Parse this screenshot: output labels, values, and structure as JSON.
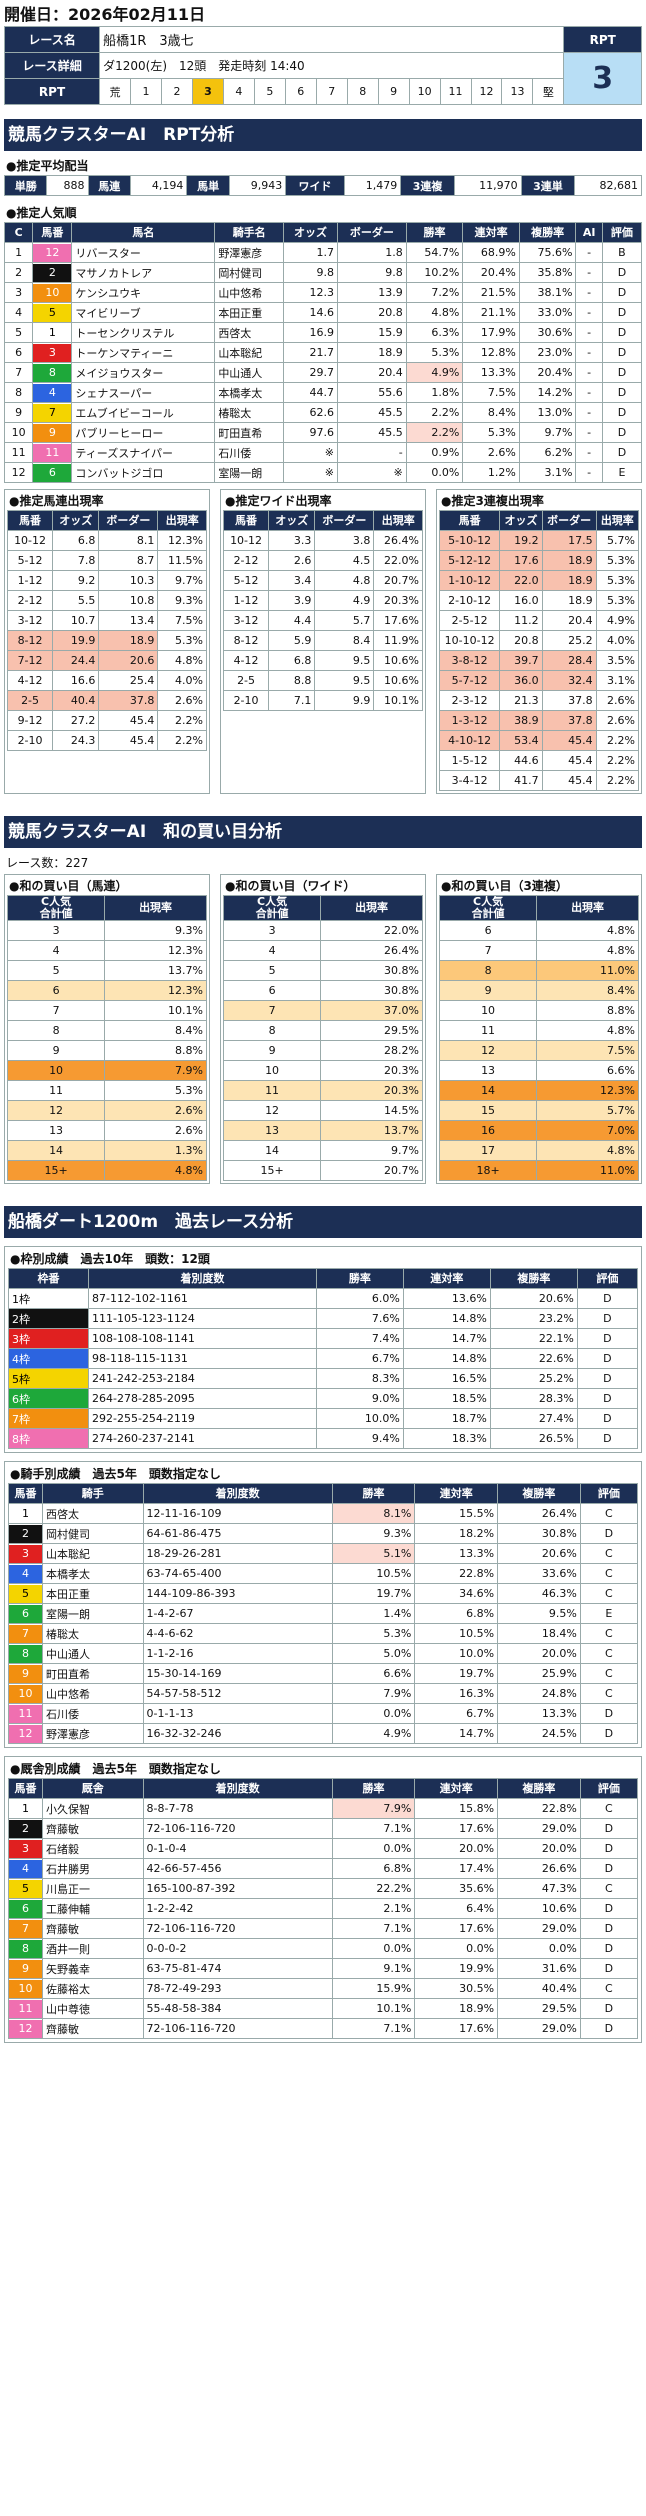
{
  "header": {
    "date_label": "開催日：2026年02月11日"
  },
  "race": {
    "name_label": "レース名",
    "name": "船橋1R　3歳七",
    "detail_label": "レース詳細",
    "detail": "ダ1200(左)　12頭　発走時刻 14:40",
    "rpt_row_label": "RPT",
    "rpt_title": "RPT",
    "rpt_value": "3",
    "rpt_scale": [
      "荒",
      "1",
      "2",
      "3",
      "4",
      "5",
      "6",
      "7",
      "8",
      "9",
      "10",
      "11",
      "12",
      "13",
      "堅"
    ],
    "rpt_selected_index": 3
  },
  "rpt_section": {
    "title": "競馬クラスターAI　RPT分析"
  },
  "avg_payout": {
    "title": "●推定平均配当",
    "items": [
      [
        "単勝",
        "888"
      ],
      [
        "馬連",
        "4,194"
      ],
      [
        "馬単",
        "9,943"
      ],
      [
        "ワイド",
        "1,479"
      ],
      [
        "3連複",
        "11,970"
      ],
      [
        "3連単",
        "82,681"
      ]
    ]
  },
  "popularity": {
    "title": "●推定人気順",
    "headers": [
      "C",
      "馬番",
      "馬名",
      "騎手名",
      "オッズ",
      "ボーダー",
      "勝率",
      "連対率",
      "複勝率",
      "AI",
      "評価"
    ],
    "rows": [
      [
        "1",
        "12",
        "リバースター",
        "野澤憲彦",
        "1.7",
        "1.8",
        "54.7%",
        "68.9%",
        "75.6%",
        "-",
        "B",
        8,
        false
      ],
      [
        "2",
        "2",
        "マサノカトレア",
        "岡村健司",
        "9.8",
        "9.8",
        "10.2%",
        "20.4%",
        "35.8%",
        "-",
        "D",
        2,
        false
      ],
      [
        "3",
        "10",
        "ケンシユウキ",
        "山中悠希",
        "12.3",
        "13.9",
        "7.2%",
        "21.5%",
        "38.1%",
        "-",
        "D",
        7,
        false
      ],
      [
        "4",
        "5",
        "マイビリーブ",
        "本田正重",
        "14.6",
        "20.8",
        "4.8%",
        "21.1%",
        "33.0%",
        "-",
        "D",
        5,
        false
      ],
      [
        "5",
        "1",
        "トーセンクリステル",
        "西啓太",
        "16.9",
        "15.9",
        "6.3%",
        "17.9%",
        "30.6%",
        "-",
        "D",
        1,
        false
      ],
      [
        "6",
        "3",
        "トーケンマティーニ",
        "山本聡紀",
        "21.7",
        "18.9",
        "5.3%",
        "12.8%",
        "23.0%",
        "-",
        "D",
        3,
        false
      ],
      [
        "7",
        "8",
        "メイジョウスター",
        "中山通人",
        "29.7",
        "20.4",
        "4.9%",
        "13.3%",
        "20.4%",
        "-",
        "D",
        6,
        true
      ],
      [
        "8",
        "4",
        "シェナスーパー",
        "本橋孝太",
        "44.7",
        "55.6",
        "1.8%",
        "7.5%",
        "14.2%",
        "-",
        "D",
        4,
        false
      ],
      [
        "9",
        "7",
        "エムブイビーコール",
        "椿聡太",
        "62.6",
        "45.5",
        "2.2%",
        "8.4%",
        "13.0%",
        "-",
        "D",
        5,
        false
      ],
      [
        "10",
        "9",
        "パブリーヒーロー",
        "町田直希",
        "97.6",
        "45.5",
        "2.2%",
        "5.3%",
        "9.7%",
        "-",
        "D",
        7,
        true
      ],
      [
        "11",
        "11",
        "ティーズスナイパー",
        "石川倭",
        "※",
        "-",
        "0.9%",
        "2.6%",
        "6.2%",
        "-",
        "D",
        8,
        false
      ],
      [
        "12",
        "6",
        "コンバットジゴロ",
        "室陽一朗",
        "※",
        "※",
        "0.0%",
        "1.2%",
        "3.1%",
        "-",
        "E",
        6,
        false
      ]
    ]
  },
  "umaren_est": {
    "title": "●推定馬連出現率",
    "headers": [
      "馬番",
      "オッズ",
      "ボーダー",
      "出現率"
    ],
    "rows": [
      [
        "10-12",
        "6.8",
        "8.1",
        "12.3%",
        false
      ],
      [
        "5-12",
        "7.8",
        "8.7",
        "11.5%",
        false
      ],
      [
        "1-12",
        "9.2",
        "10.3",
        "9.7%",
        false
      ],
      [
        "2-12",
        "5.5",
        "10.8",
        "9.3%",
        false
      ],
      [
        "3-12",
        "10.7",
        "13.4",
        "7.5%",
        false
      ],
      [
        "8-12",
        "19.9",
        "18.9",
        "5.3%",
        true
      ],
      [
        "7-12",
        "24.4",
        "20.6",
        "4.8%",
        true
      ],
      [
        "4-12",
        "16.6",
        "25.4",
        "4.0%",
        false
      ],
      [
        "2-5",
        "40.4",
        "37.8",
        "2.6%",
        true
      ],
      [
        "9-12",
        "27.2",
        "45.4",
        "2.2%",
        false
      ],
      [
        "2-10",
        "24.3",
        "45.4",
        "2.2%",
        false
      ]
    ]
  },
  "wide_est": {
    "title": "●推定ワイド出現率",
    "headers": [
      "馬番",
      "オッズ",
      "ボーダー",
      "出現率"
    ],
    "rows": [
      [
        "10-12",
        "3.3",
        "3.8",
        "26.4%"
      ],
      [
        "2-12",
        "2.6",
        "4.5",
        "22.0%"
      ],
      [
        "5-12",
        "3.4",
        "4.8",
        "20.7%"
      ],
      [
        "1-12",
        "3.9",
        "4.9",
        "20.3%"
      ],
      [
        "3-12",
        "4.4",
        "5.7",
        "17.6%"
      ],
      [
        "8-12",
        "5.9",
        "8.4",
        "11.9%"
      ],
      [
        "4-12",
        "6.8",
        "9.5",
        "10.6%"
      ],
      [
        "2-5",
        "8.8",
        "9.5",
        "10.6%"
      ],
      [
        "2-10",
        "7.1",
        "9.9",
        "10.1%"
      ]
    ]
  },
  "trio_est": {
    "title": "●推定3連複出現率",
    "headers": [
      "馬番",
      "オッズ",
      "ボーダー",
      "出現率"
    ],
    "rows": [
      [
        "5-10-12",
        "19.2",
        "17.5",
        "5.7%",
        true
      ],
      [
        "5-12-12",
        "17.6",
        "18.9",
        "5.3%",
        true
      ],
      [
        "1-10-12",
        "22.0",
        "18.9",
        "5.3%",
        true
      ],
      [
        "2-10-12",
        "16.0",
        "18.9",
        "5.3%",
        false
      ],
      [
        "2-5-12",
        "11.2",
        "20.4",
        "4.9%",
        false
      ],
      [
        "10-10-12",
        "20.8",
        "25.2",
        "4.0%",
        false
      ],
      [
        "3-8-12",
        "39.7",
        "28.4",
        "3.5%",
        true
      ],
      [
        "5-7-12",
        "36.0",
        "32.4",
        "3.1%",
        true
      ],
      [
        "2-3-12",
        "21.3",
        "37.8",
        "2.6%",
        false
      ],
      [
        "1-3-12",
        "38.9",
        "37.8",
        "2.6%",
        true
      ],
      [
        "4-10-12",
        "53.4",
        "45.4",
        "2.2%",
        true
      ],
      [
        "1-5-12",
        "44.6",
        "45.4",
        "2.2%",
        false
      ],
      [
        "3-4-12",
        "41.7",
        "45.4",
        "2.2%",
        false
      ]
    ]
  },
  "wa_section": {
    "title": "競馬クラスターAI　和の買い目分析",
    "race_count": "レース数：227"
  },
  "wa_umaren": {
    "title": "●和の買い目（馬連）",
    "headers": [
      "C人気\n合計値",
      "出現率"
    ],
    "rows": [
      [
        "3",
        "9.3%",
        ""
      ],
      [
        "4",
        "12.3%",
        ""
      ],
      [
        "5",
        "13.7%",
        ""
      ],
      [
        "6",
        "12.3%",
        "L"
      ],
      [
        "7",
        "10.1%",
        ""
      ],
      [
        "8",
        "8.4%",
        ""
      ],
      [
        "9",
        "8.8%",
        ""
      ],
      [
        "10",
        "7.9%",
        "D"
      ],
      [
        "11",
        "5.3%",
        ""
      ],
      [
        "12",
        "2.6%",
        "L"
      ],
      [
        "13",
        "2.6%",
        ""
      ],
      [
        "14",
        "1.3%",
        "L"
      ],
      [
        "15+",
        "4.8%",
        "D"
      ]
    ]
  },
  "wa_wide": {
    "title": "●和の買い目（ワイド）",
    "headers": [
      "C人気\n合計値",
      "出現率"
    ],
    "rows": [
      [
        "3",
        "22.0%",
        ""
      ],
      [
        "4",
        "26.4%",
        ""
      ],
      [
        "5",
        "30.8%",
        ""
      ],
      [
        "6",
        "30.8%",
        ""
      ],
      [
        "7",
        "37.0%",
        "L"
      ],
      [
        "8",
        "29.5%",
        ""
      ],
      [
        "9",
        "28.2%",
        ""
      ],
      [
        "10",
        "20.3%",
        ""
      ],
      [
        "11",
        "20.3%",
        "L"
      ],
      [
        "12",
        "14.5%",
        ""
      ],
      [
        "13",
        "13.7%",
        "L"
      ],
      [
        "14",
        "9.7%",
        ""
      ],
      [
        "15+",
        "20.7%",
        ""
      ]
    ]
  },
  "wa_trio": {
    "title": "●和の買い目（3連複）",
    "headers": [
      "C人気\n合計値",
      "出現率"
    ],
    "rows": [
      [
        "6",
        "4.8%",
        ""
      ],
      [
        "7",
        "4.8%",
        ""
      ],
      [
        "8",
        "11.0%",
        "M"
      ],
      [
        "9",
        "8.4%",
        "L"
      ],
      [
        "10",
        "8.8%",
        ""
      ],
      [
        "11",
        "4.8%",
        ""
      ],
      [
        "12",
        "7.5%",
        "L"
      ],
      [
        "13",
        "6.6%",
        ""
      ],
      [
        "14",
        "12.3%",
        "D"
      ],
      [
        "15",
        "5.7%",
        "L"
      ],
      [
        "16",
        "7.0%",
        "D"
      ],
      [
        "17",
        "4.8%",
        "L"
      ],
      [
        "18+",
        "11.0%",
        "D"
      ]
    ]
  },
  "past_section": {
    "title": "船橋ダート1200m　過去レース分析"
  },
  "waku": {
    "title": "●枠別成績　過去10年　頭数：12頭",
    "headers": [
      "枠番",
      "着別度数",
      "勝率",
      "連対率",
      "複勝率",
      "評価"
    ],
    "rows": [
      [
        "1枠",
        "87-112-102-1161",
        "6.0%",
        "13.6%",
        "20.6%",
        "D",
        1
      ],
      [
        "2枠",
        "111-105-123-1124",
        "7.6%",
        "14.8%",
        "23.2%",
        "D",
        2
      ],
      [
        "3枠",
        "108-108-108-1141",
        "7.4%",
        "14.7%",
        "22.1%",
        "D",
        3
      ],
      [
        "4枠",
        "98-118-115-1131",
        "6.7%",
        "14.8%",
        "22.6%",
        "D",
        4
      ],
      [
        "5枠",
        "241-242-253-2184",
        "8.3%",
        "16.5%",
        "25.2%",
        "D",
        5
      ],
      [
        "6枠",
        "264-278-285-2095",
        "9.0%",
        "18.5%",
        "28.3%",
        "D",
        6
      ],
      [
        "7枠",
        "292-255-254-2119",
        "10.0%",
        "18.7%",
        "27.4%",
        "D",
        7
      ],
      [
        "8枠",
        "274-260-237-2141",
        "9.4%",
        "18.3%",
        "26.5%",
        "D",
        8
      ]
    ]
  },
  "jockey": {
    "title": "●騎手別成績　過去5年　頭数指定なし",
    "headers": [
      "馬番",
      "騎手",
      "着別度数",
      "勝率",
      "連対率",
      "複勝率",
      "評価"
    ],
    "rows": [
      [
        "1",
        "西啓太",
        "12-11-16-109",
        "8.1%",
        "15.5%",
        "26.4%",
        "C",
        1,
        true
      ],
      [
        "2",
        "岡村健司",
        "64-61-86-475",
        "9.3%",
        "18.2%",
        "30.8%",
        "D",
        2,
        false
      ],
      [
        "3",
        "山本聡紀",
        "18-29-26-281",
        "5.1%",
        "13.3%",
        "20.6%",
        "C",
        3,
        true
      ],
      [
        "4",
        "本橋孝太",
        "63-74-65-400",
        "10.5%",
        "22.8%",
        "33.6%",
        "C",
        4,
        false
      ],
      [
        "5",
        "本田正重",
        "144-109-86-393",
        "19.7%",
        "34.6%",
        "46.3%",
        "C",
        5,
        false
      ],
      [
        "6",
        "室陽一朗",
        "1-4-2-67",
        "1.4%",
        "6.8%",
        "9.5%",
        "E",
        6,
        false
      ],
      [
        "7",
        "椿聡太",
        "4-4-6-62",
        "5.3%",
        "10.5%",
        "18.4%",
        "C",
        7,
        false
      ],
      [
        "8",
        "中山通人",
        "1-1-2-16",
        "5.0%",
        "10.0%",
        "20.0%",
        "C",
        6,
        false
      ],
      [
        "9",
        "町田直希",
        "15-30-14-169",
        "6.6%",
        "19.7%",
        "25.9%",
        "C",
        7,
        false
      ],
      [
        "10",
        "山中悠希",
        "54-57-58-512",
        "7.9%",
        "16.3%",
        "24.8%",
        "C",
        7,
        false
      ],
      [
        "11",
        "石川倭",
        "0-1-1-13",
        "0.0%",
        "6.7%",
        "13.3%",
        "D",
        8,
        false
      ],
      [
        "12",
        "野澤憲彦",
        "16-32-32-246",
        "4.9%",
        "14.7%",
        "24.5%",
        "D",
        8,
        false
      ]
    ]
  },
  "trainer": {
    "title": "●厩舎別成績　過去5年　頭数指定なし",
    "headers": [
      "馬番",
      "厩舎",
      "着別度数",
      "勝率",
      "連対率",
      "複勝率",
      "評価"
    ],
    "rows": [
      [
        "1",
        "小久保智",
        "8-8-7-78",
        "7.9%",
        "15.8%",
        "22.8%",
        "C",
        1,
        true
      ],
      [
        "2",
        "齊藤敏",
        "72-106-116-720",
        "7.1%",
        "17.6%",
        "29.0%",
        "D",
        2,
        false
      ],
      [
        "3",
        "石绪毅",
        "0-1-0-4",
        "0.0%",
        "20.0%",
        "20.0%",
        "D",
        3,
        false
      ],
      [
        "4",
        "石井勝男",
        "42-66-57-456",
        "6.8%",
        "17.4%",
        "26.6%",
        "D",
        4,
        false
      ],
      [
        "5",
        "川島正一",
        "165-100-87-392",
        "22.2%",
        "35.6%",
        "47.3%",
        "C",
        5,
        false
      ],
      [
        "6",
        "工藤伸輔",
        "1-2-2-42",
        "2.1%",
        "6.4%",
        "10.6%",
        "D",
        6,
        false
      ],
      [
        "7",
        "齊藤敏",
        "72-106-116-720",
        "7.1%",
        "17.6%",
        "29.0%",
        "D",
        7,
        false
      ],
      [
        "8",
        "酒井一則",
        "0-0-0-2",
        "0.0%",
        "0.0%",
        "0.0%",
        "D",
        6,
        false
      ],
      [
        "9",
        "矢野義幸",
        "63-75-81-474",
        "9.1%",
        "19.9%",
        "31.6%",
        "D",
        7,
        false
      ],
      [
        "10",
        "佐藤裕太",
        "78-72-49-293",
        "15.9%",
        "30.5%",
        "40.4%",
        "C",
        7,
        false
      ],
      [
        "11",
        "山中尊徳",
        "55-48-58-384",
        "10.1%",
        "18.9%",
        "29.5%",
        "D",
        8,
        false
      ],
      [
        "12",
        "齊藤敏",
        "72-106-116-720",
        "7.1%",
        "17.6%",
        "29.0%",
        "D",
        8,
        false
      ]
    ]
  },
  "colors": {
    "navy": "#1c2f55",
    "gate1": "#ffffff",
    "gate2": "#111111",
    "gate3": "#e02020",
    "gate4": "#2c64e0",
    "gate5": "#f4d400",
    "gate6": "#1ea83a",
    "gate7": "#f28f0f",
    "gate8": "#f06fb0",
    "highlight_pink": "#f8c1ae",
    "highlight_orange": "#f69a32",
    "rpt_selected": "#f4c20d"
  }
}
